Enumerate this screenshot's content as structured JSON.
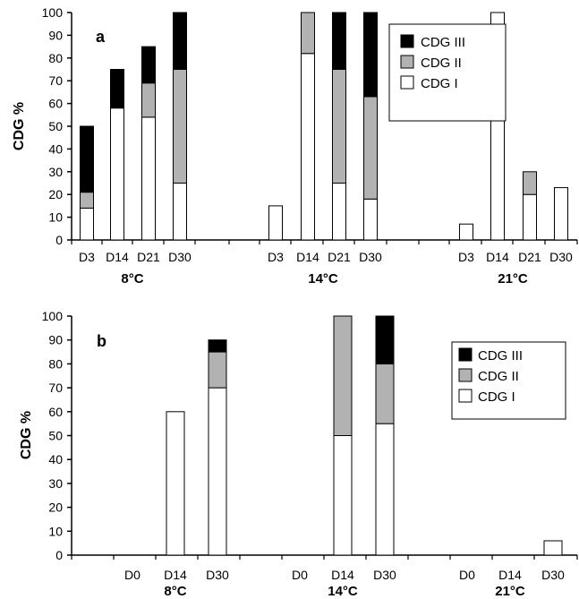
{
  "colors": {
    "CDG III": "#000000",
    "CDG II": "#b2b2b2",
    "CDG I": "#ffffff"
  },
  "chart_data": [
    {
      "type": "bar",
      "stacked": true,
      "panel_label": "a",
      "ylabel": "CDG %",
      "ylim": [
        0,
        100
      ],
      "yticks": [
        0,
        10,
        20,
        30,
        40,
        50,
        60,
        70,
        80,
        90,
        100
      ],
      "legend_position": "top-right",
      "legend": [
        "CDG III",
        "CDG II",
        "CDG I"
      ],
      "groups": [
        {
          "label": "8°C",
          "categories": [
            "D3",
            "D14",
            "D21",
            "D30"
          ]
        },
        {
          "label": "14°C",
          "categories": [
            "D3",
            "D14",
            "D21",
            "D30"
          ]
        },
        {
          "label": "21°C",
          "categories": [
            "D3",
            "D14",
            "D21",
            "D30"
          ]
        }
      ],
      "series": [
        {
          "name": "CDG I",
          "values": [
            14,
            58,
            54,
            25,
            15,
            82,
            25,
            18,
            7,
            100,
            20,
            23
          ]
        },
        {
          "name": "CDG II",
          "values": [
            7,
            0,
            15,
            50,
            0,
            18,
            50,
            45,
            0,
            0,
            10,
            0
          ]
        },
        {
          "name": "CDG III",
          "values": [
            29,
            17,
            16,
            25,
            0,
            0,
            25,
            37,
            0,
            0,
            0,
            0
          ]
        }
      ]
    },
    {
      "type": "bar",
      "stacked": true,
      "panel_label": "b",
      "ylabel": "CDG %",
      "ylim": [
        0,
        100
      ],
      "yticks": [
        0,
        10,
        20,
        30,
        40,
        50,
        60,
        70,
        80,
        90,
        100
      ],
      "legend_position": "top-right",
      "legend": [
        "CDG III",
        "CDG II",
        "CDG I"
      ],
      "groups": [
        {
          "label": "8°C",
          "categories": [
            "D0",
            "D14",
            "D30"
          ]
        },
        {
          "label": "14°C",
          "categories": [
            "D0",
            "D14",
            "D30"
          ]
        },
        {
          "label": "21°C",
          "categories": [
            "D0",
            "D14",
            "D30"
          ]
        }
      ],
      "series": [
        {
          "name": "CDG I",
          "values": [
            0,
            60,
            70,
            0,
            50,
            55,
            0,
            0,
            6
          ]
        },
        {
          "name": "CDG II",
          "values": [
            0,
            0,
            15,
            0,
            50,
            25,
            0,
            0,
            0
          ]
        },
        {
          "name": "CDG III",
          "values": [
            0,
            0,
            5,
            0,
            0,
            20,
            0,
            0,
            0
          ]
        }
      ]
    }
  ]
}
